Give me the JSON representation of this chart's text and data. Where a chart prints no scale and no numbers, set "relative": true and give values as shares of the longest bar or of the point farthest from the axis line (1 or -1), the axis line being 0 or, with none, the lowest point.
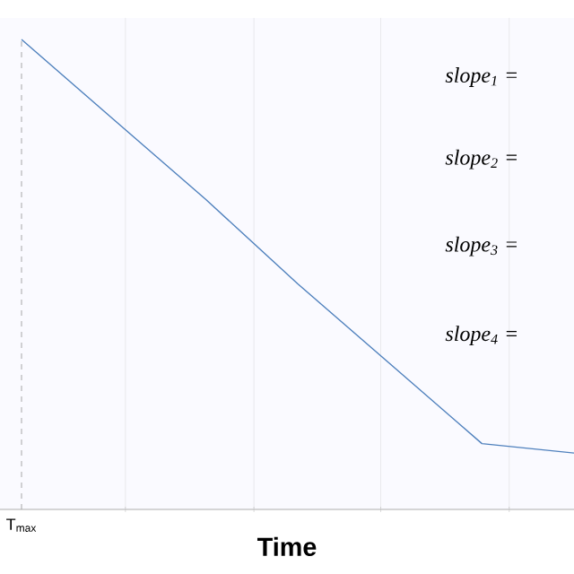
{
  "chart_data": {
    "type": "line",
    "relative": true,
    "xlabel": "Time",
    "categories": [
      null,
      null,
      null,
      null,
      null,
      null,
      null
    ],
    "series": [
      {
        "color": "#4f81bd",
        "values": [
          1,
          0.83,
          0.66,
          0.48,
          0.31,
          0.14,
          0.12
        ]
      }
    ],
    "grid": "x",
    "line_style": "solid",
    "annotations": [
      "T$_{max}$",
      "slope$_{1}$ =",
      "slope$_{2}$ =",
      "slope$_{3}$ =",
      "slope$_{4}$ ="
    ]
  }
}
